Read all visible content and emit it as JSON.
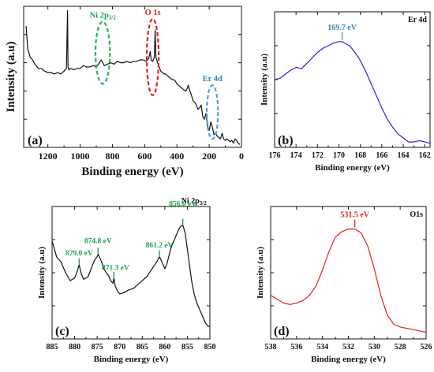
{
  "colors": {
    "black": "#111111",
    "blue": "#2222dd",
    "red": "#e21f1f",
    "green": "#0a8a3a",
    "green_text": "#17a64a",
    "blue_note": "#3a7fc4",
    "red_dash": "#e21f1f",
    "green_dash": "#2bb35a",
    "blue_dash": "#5a9bd8"
  },
  "chart_data": [
    {
      "id": "a",
      "type": "line",
      "panel_label": "(a)",
      "xlabel": "Binding energy (eV)",
      "ylabel": "Intensity (a.u)",
      "xlim": [
        1350,
        0
      ],
      "ylim": [
        0,
        100
      ],
      "x_reversed": true,
      "xticks": [
        1200,
        1000,
        800,
        600,
        400,
        200,
        0
      ],
      "tick_labels": [
        "1200",
        "1000",
        "800",
        "600",
        "400",
        "200",
        "0"
      ],
      "series": [
        {
          "color": "#111111",
          "x": [
            1335,
            1325,
            1310,
            1295,
            1280,
            1260,
            1240,
            1220,
            1200,
            1180,
            1160,
            1140,
            1120,
            1100,
            1085,
            1078,
            1075,
            1070,
            1060,
            1040,
            1020,
            1000,
            980,
            960,
            940,
            920,
            900,
            880,
            870,
            860,
            850,
            830,
            810,
            790,
            770,
            750,
            730,
            710,
            690,
            670,
            650,
            630,
            610,
            590,
            575,
            565,
            560,
            550,
            540,
            535,
            530,
            525,
            520,
            515,
            510,
            500,
            490,
            480,
            470,
            460,
            450,
            440,
            430,
            420,
            410,
            400,
            390,
            380,
            370,
            360,
            345,
            335,
            330,
            320,
            310,
            300,
            290,
            280,
            270,
            260,
            250,
            240,
            230,
            220,
            210,
            200,
            190,
            180,
            170,
            160,
            150,
            140,
            130,
            120,
            110,
            100,
            90,
            80,
            70,
            60,
            50,
            40,
            30,
            20,
            10
          ],
          "y": [
            86,
            70,
            64,
            62,
            59,
            56,
            56,
            54,
            53,
            53,
            52,
            53,
            52,
            54,
            56,
            97,
            57,
            55,
            56,
            55,
            56,
            56,
            58,
            57,
            57,
            58,
            57,
            60,
            62,
            60,
            58,
            59,
            60,
            59,
            61,
            60,
            60,
            61,
            60,
            61,
            61,
            62,
            62,
            61,
            63,
            68,
            62,
            61,
            64,
            83,
            64,
            62,
            60,
            59,
            57,
            54,
            53,
            52,
            52,
            51,
            50,
            49,
            48,
            48,
            47,
            45,
            44,
            43,
            42,
            41,
            40,
            42,
            44,
            40,
            37,
            33,
            32,
            30,
            27,
            28,
            30,
            22,
            20,
            24,
            15,
            12,
            18,
            14,
            9,
            10,
            8,
            7,
            6,
            10,
            6,
            5,
            6,
            5,
            4,
            5,
            3,
            6,
            5,
            3,
            2
          ]
        }
      ],
      "annotations": [
        {
          "text": "Ni 2p",
          "sub": "3/2",
          "color": "#17a64a",
          "ellipse": {
            "cx": 860,
            "cy": 67,
            "rx": 45,
            "ry": 22,
            "color": "#2bb35a"
          }
        },
        {
          "text": "O 1s",
          "sub": "",
          "color": "#e21f1f",
          "ellipse": {
            "cx": 550,
            "cy": 64,
            "rx": 37,
            "ry": 27,
            "color": "#e21f1f"
          }
        },
        {
          "text": "Er 4d",
          "sub": "",
          "color": "#3a7fc4",
          "ellipse": {
            "cx": 180,
            "cy": 25,
            "rx": 35,
            "ry": 19,
            "color": "#5a9bd8"
          }
        }
      ]
    },
    {
      "id": "b",
      "type": "line",
      "panel_label": "(b)",
      "corner_label": "Er 4d",
      "xlabel": "Binding energy (eV)",
      "ylabel": "Intensity (a.u)",
      "xlim": [
        176,
        161.5
      ],
      "ylim": [
        0,
        100
      ],
      "x_reversed": true,
      "xticks": [
        176,
        174,
        172,
        170,
        168,
        166,
        164,
        162
      ],
      "tick_labels": [
        "176",
        "174",
        "172",
        "170",
        "168",
        "166",
        "164",
        "162"
      ],
      "peak_label": {
        "text": "169.7 eV",
        "x": 169.7,
        "color": "#3a7fc4"
      },
      "series": [
        {
          "color": "#2222dd",
          "x": [
            176,
            175.5,
            175,
            174.5,
            174,
            173.5,
            173,
            172.5,
            172,
            171.5,
            171,
            170.5,
            170,
            169.7,
            169.5,
            169,
            168.5,
            168,
            167.5,
            167,
            166.5,
            166,
            165.5,
            165,
            164.5,
            164,
            163.5,
            163,
            162.5,
            162,
            161.5
          ],
          "y": [
            50,
            51,
            54,
            57,
            59,
            58,
            62,
            66,
            70,
            73,
            75,
            77,
            78,
            78,
            77,
            75,
            70,
            64,
            56,
            47,
            38,
            29,
            21,
            15,
            10,
            7,
            4,
            4,
            5,
            4,
            3
          ]
        }
      ]
    },
    {
      "id": "c",
      "type": "line",
      "panel_label": "(c)",
      "corner_label": "Ni 2p",
      "corner_sub": "3/2",
      "xlabel": "Binding energy (eV)",
      "ylabel": "Intensity (a.u)",
      "xlim": [
        885,
        850
      ],
      "ylim": [
        0,
        100
      ],
      "x_reversed": true,
      "xticks": [
        885,
        880,
        875,
        870,
        865,
        860,
        855,
        850
      ],
      "tick_labels": [
        "885",
        "880",
        "875",
        "870",
        "865",
        "860",
        "855",
        "850"
      ],
      "peak_labels": [
        {
          "text": "879.0 eV",
          "x": 879.0
        },
        {
          "text": "874.8 eV",
          "x": 874.8
        },
        {
          "text": "871.3 eV",
          "x": 871.3
        },
        {
          "text": "861.2 eV",
          "x": 861.2
        },
        {
          "text": "856.0 eV",
          "x": 856.0
        }
      ],
      "series": [
        {
          "color": "#111111",
          "x": [
            885,
            884,
            883,
            882,
            881,
            880,
            879.5,
            879,
            878.5,
            878,
            877,
            876,
            875.5,
            875,
            874.8,
            874.5,
            874,
            873.5,
            873,
            872.5,
            872,
            871.5,
            871.3,
            871,
            870.5,
            870,
            869,
            868,
            867,
            866,
            865,
            864,
            863,
            862,
            861.5,
            861.2,
            861,
            860.5,
            860,
            859.5,
            859,
            858.5,
            858,
            857.5,
            857,
            856.5,
            856,
            855.5,
            855,
            854.5,
            854,
            853.5,
            853,
            852.5,
            852,
            851.5,
            851,
            850.5,
            850
          ],
          "y": [
            74,
            62,
            58,
            50,
            44,
            46,
            50,
            56,
            49,
            45,
            47,
            56,
            60,
            62,
            64,
            62,
            58,
            53,
            50,
            48,
            44,
            42,
            46,
            40,
            36,
            34,
            35,
            37,
            38,
            41,
            44,
            47,
            52,
            57,
            60,
            62,
            61,
            57,
            53,
            57,
            64,
            70,
            74,
            78,
            82,
            85,
            86,
            80,
            68,
            55,
            43,
            34,
            28,
            24,
            20,
            16,
            12,
            10,
            9
          ]
        }
      ]
    },
    {
      "id": "d",
      "type": "line",
      "panel_label": "(d)",
      "corner_label": "O1s",
      "xlabel": "Binding energy (eV)",
      "ylabel": "Intensity (a.u)",
      "xlim": [
        538,
        526
      ],
      "ylim": [
        0,
        100
      ],
      "x_reversed": true,
      "xticks": [
        538,
        536,
        534,
        532,
        530,
        528,
        526
      ],
      "tick_labels": [
        "538",
        "536",
        "534",
        "532",
        "530",
        "528",
        "526"
      ],
      "peak_label": {
        "text": "531.5 eV",
        "x": 531.5,
        "color": "#e21f1f"
      },
      "series": [
        {
          "color": "#e21f1f",
          "x": [
            538,
            537.5,
            537,
            536.5,
            536,
            535.5,
            535,
            534.5,
            534,
            533.5,
            533,
            532.5,
            532,
            531.5,
            531,
            530.5,
            530,
            529.5,
            529,
            528.5,
            528,
            527.5,
            527,
            526.5,
            526
          ],
          "y": [
            33,
            30,
            27,
            26,
            27,
            29,
            33,
            40,
            52,
            66,
            77,
            81,
            83,
            83,
            80,
            70,
            53,
            33,
            18,
            11,
            9,
            8,
            7,
            6,
            5
          ]
        }
      ]
    }
  ]
}
